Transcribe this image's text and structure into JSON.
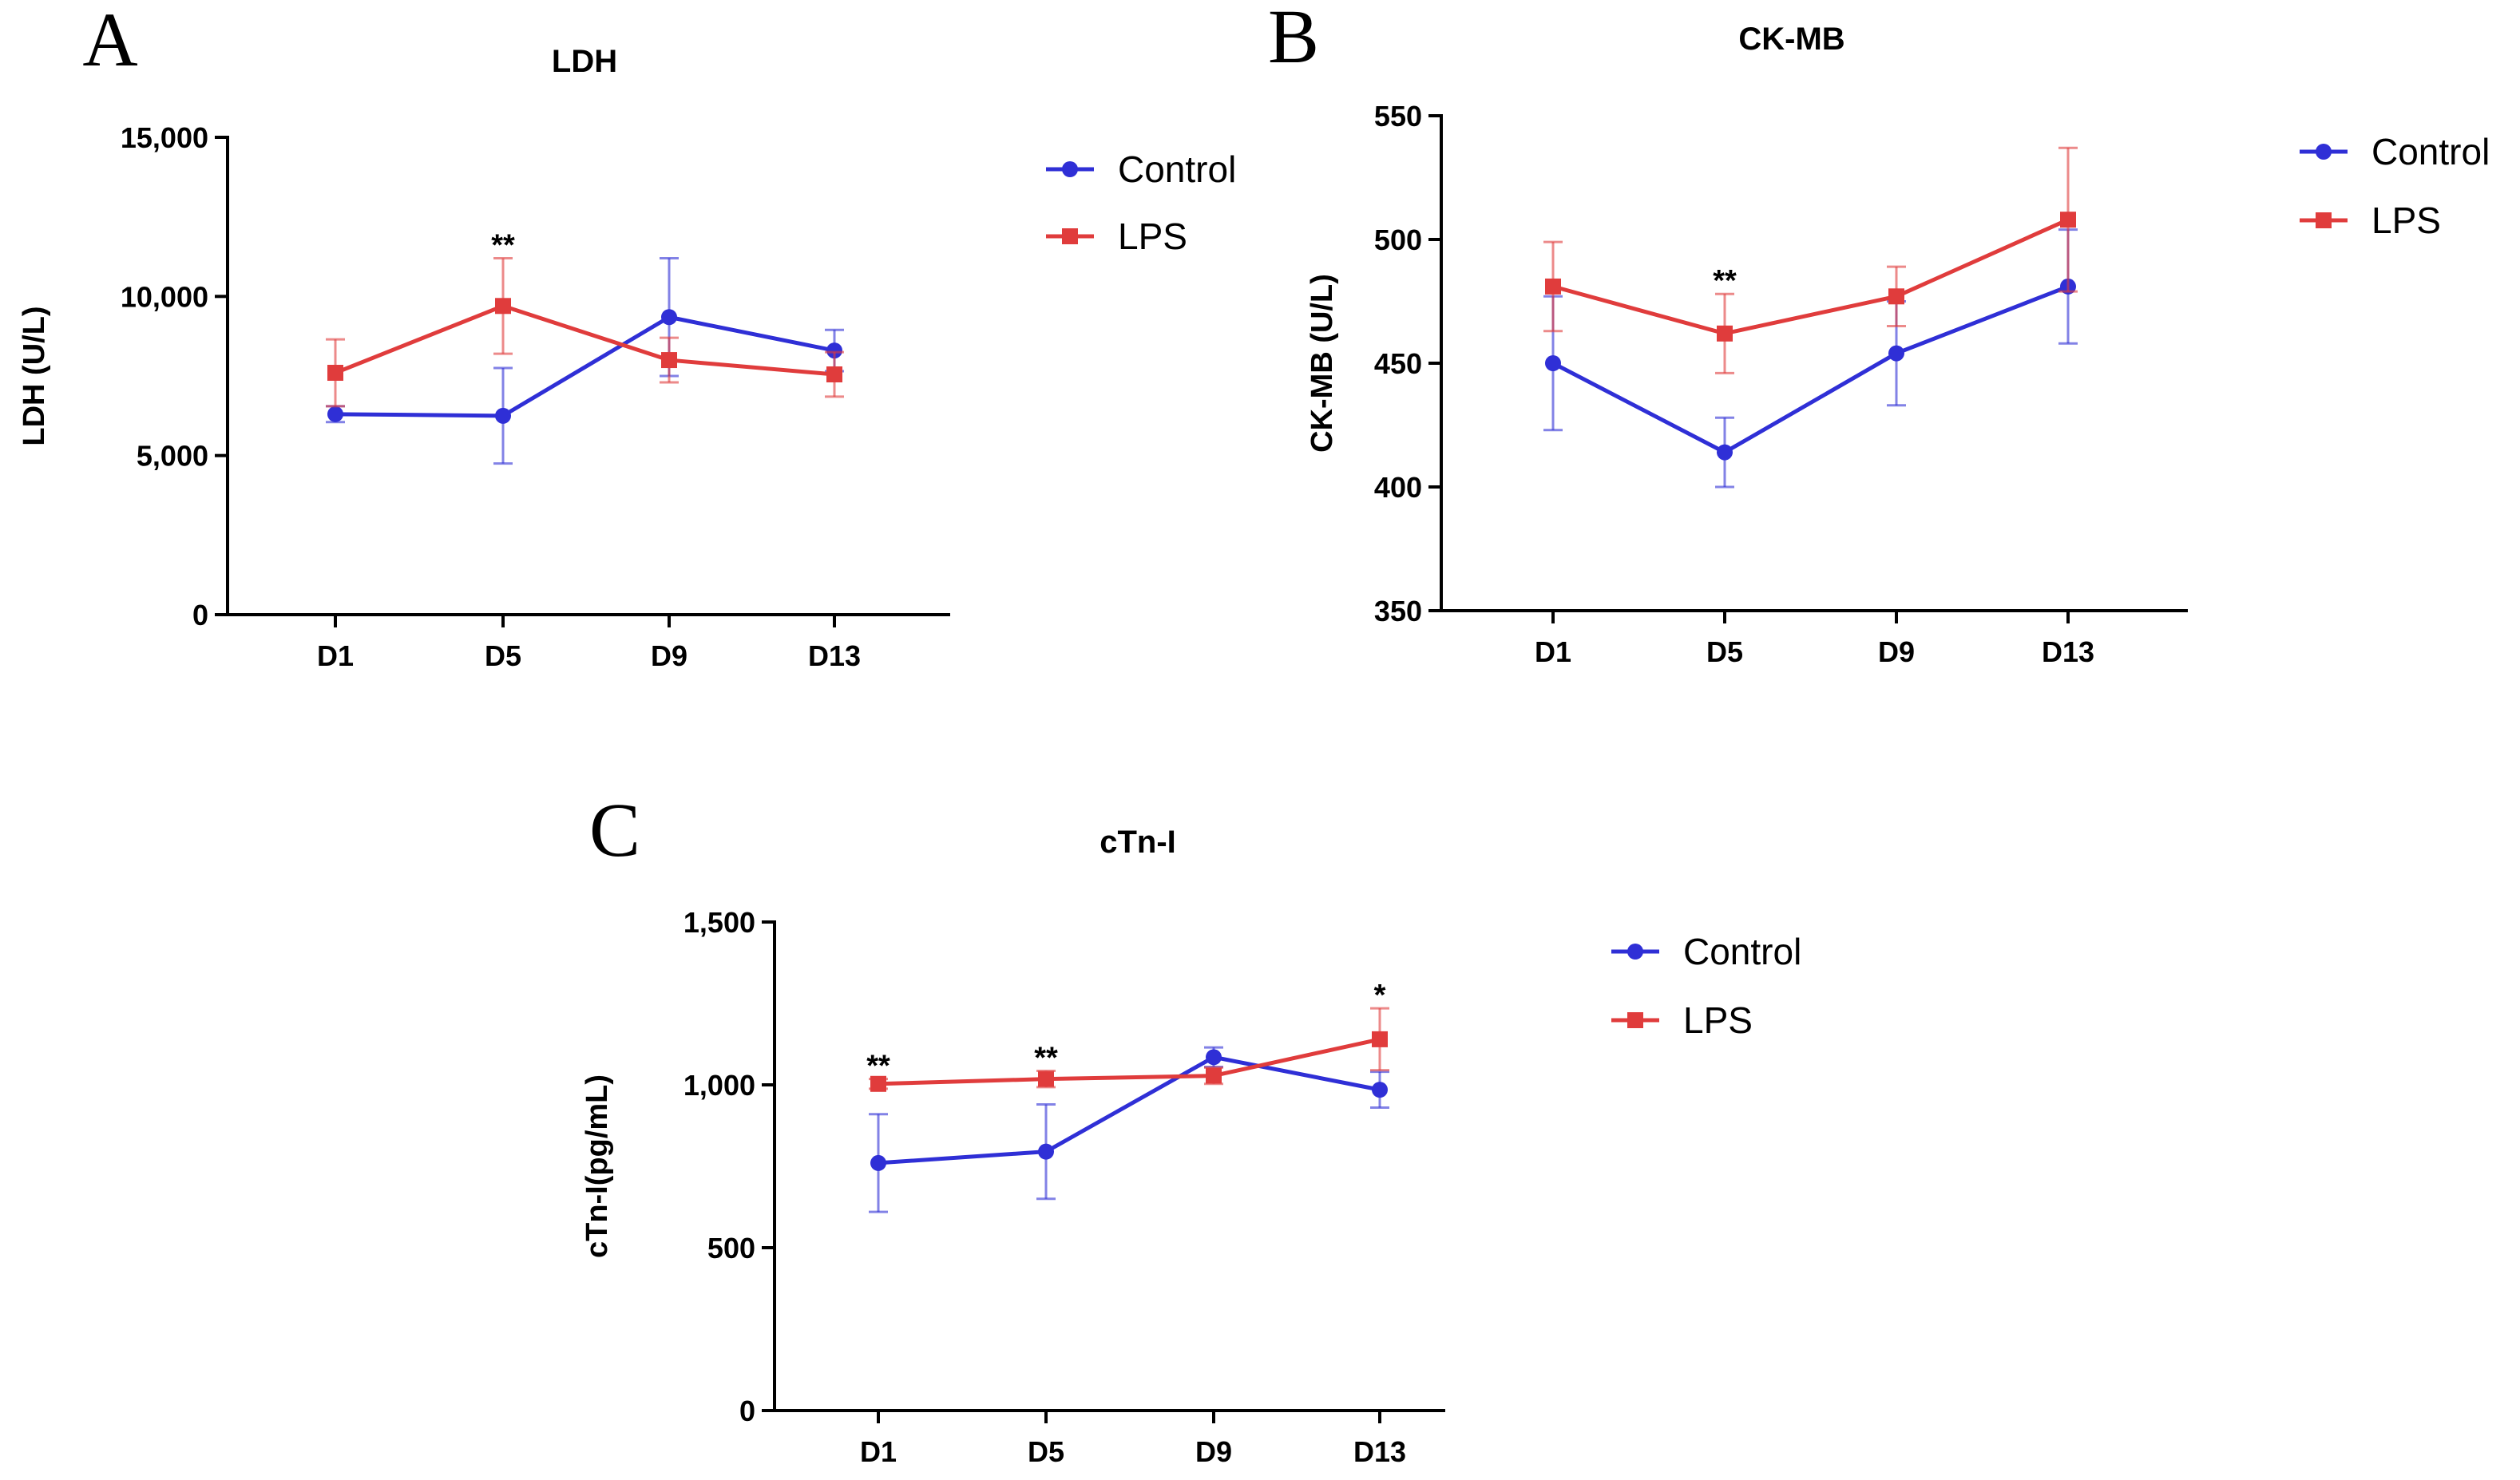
{
  "figure": {
    "legend_labels": [
      "Control",
      "LPS"
    ],
    "colors": {
      "Control": "#2f2fd6",
      "LPS": "#e03c3c"
    }
  },
  "chart_data": [
    {
      "panel": "A",
      "type": "line",
      "title": "LDH",
      "ylabel": "LDH (U/L)",
      "xlabel": "",
      "categories": [
        "D1",
        "D5",
        "D9",
        "D13"
      ],
      "ylim": [
        0,
        15000
      ],
      "yticks": [
        0,
        5000,
        10000,
        15000
      ],
      "ytick_labels": [
        "0",
        "5,000",
        "10,000",
        "15,000"
      ],
      "series": [
        {
          "name": "Control",
          "values": [
            6300,
            6250,
            9350,
            8300
          ],
          "errors": [
            250,
            1500,
            1850,
            650
          ]
        },
        {
          "name": "LPS",
          "values": [
            7600,
            9700,
            8000,
            7550
          ],
          "errors": [
            1050,
            1500,
            700,
            700
          ]
        }
      ],
      "annotations": [
        {
          "category": "D5",
          "text": "**"
        }
      ],
      "legend": "top-right"
    },
    {
      "panel": "B",
      "type": "line",
      "title": "CK-MB",
      "ylabel": "CK-MB (U/L)",
      "xlabel": "",
      "categories": [
        "D1",
        "D5",
        "D9",
        "D13"
      ],
      "ylim": [
        350,
        550
      ],
      "yticks": [
        350,
        400,
        450,
        500,
        550
      ],
      "ytick_labels": [
        "350",
        "400",
        "450",
        "500",
        "550"
      ],
      "series": [
        {
          "name": "Control",
          "values": [
            450,
            414,
            454,
            481
          ],
          "errors": [
            27,
            14,
            21,
            23
          ]
        },
        {
          "name": "LPS",
          "values": [
            481,
            462,
            477,
            508
          ],
          "errors": [
            18,
            16,
            12,
            29
          ]
        }
      ],
      "annotations": [
        {
          "category": "D5",
          "text": "**"
        }
      ],
      "legend": "top-right"
    },
    {
      "panel": "C",
      "type": "line",
      "title": "cTn-I",
      "ylabel": "cTn-I(pg/mL)",
      "xlabel": "",
      "categories": [
        "D1",
        "D5",
        "D9",
        "D13"
      ],
      "ylim": [
        0,
        1500
      ],
      "yticks": [
        0,
        500,
        1000,
        1500
      ],
      "ytick_labels": [
        "0",
        "500",
        "1,000",
        "1,500"
      ],
      "series": [
        {
          "name": "Control",
          "values": [
            760,
            795,
            1085,
            985
          ],
          "errors": [
            150,
            145,
            30,
            55
          ]
        },
        {
          "name": "LPS",
          "values": [
            1003,
            1018,
            1028,
            1140
          ],
          "errors": [
            15,
            25,
            25,
            95
          ]
        }
      ],
      "annotations": [
        {
          "category": "D1",
          "text": "**"
        },
        {
          "category": "D5",
          "text": "**"
        },
        {
          "category": "D13",
          "text": "*"
        }
      ],
      "legend": "top-right"
    }
  ]
}
